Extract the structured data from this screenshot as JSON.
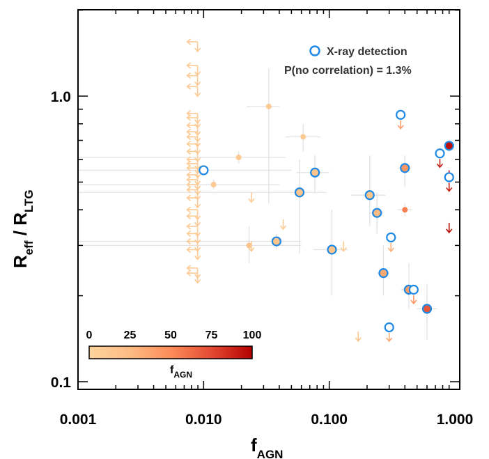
{
  "chart_data": {
    "type": "scatter",
    "x_scale": "log",
    "y_scale": "log",
    "xlim": [
      0.001,
      1.0
    ],
    "ylim": [
      0.1,
      2.0
    ],
    "x_ticks": [
      "0.001",
      "0.010",
      "0.100",
      "1.000"
    ],
    "y_ticks": [
      "0.1",
      "1.0"
    ],
    "xlabel": "f",
    "xlabel_sub": "AGN",
    "ylabel": [
      "R",
      "eff",
      " / R",
      "LTG"
    ],
    "legend": {
      "marker_label": "X-ray detection",
      "stat_label": "P(no correlation) = 1.3%",
      "placement": "top-right",
      "marker_color": "#1e88e5"
    },
    "colorbar": {
      "ticks": [
        "0",
        "25",
        "50",
        "75",
        "100"
      ],
      "label": "f",
      "label_sub": "AGN",
      "colors": [
        "#fdd49e",
        "#fdbb84",
        "#fc8d59",
        "#e34a33",
        "#b30000"
      ],
      "placement": "bottom-left"
    },
    "detections": [
      {
        "x": 0.033,
        "y": 0.92,
        "fagn": 10,
        "xerr": [
          0.022,
          0.04
        ],
        "yerr": [
          0.42,
          1.25
        ]
      },
      {
        "x": 0.062,
        "y": 0.72,
        "fagn": 10,
        "xerr": [
          0.045,
          0.085
        ],
        "yerr": [
          0.64,
          0.8
        ]
      },
      {
        "x": 0.019,
        "y": 0.61,
        "fagn": 12,
        "xerr": [
          0.001,
          0.045
        ],
        "yerr": [
          0.58,
          0.64
        ]
      },
      {
        "x": 0.012,
        "y": 0.49,
        "fagn": 12,
        "xerr": [
          0.001,
          0.04
        ],
        "yerr": [
          0.47,
          0.51
        ]
      },
      {
        "x": 0.023,
        "y": 0.3,
        "fagn": 15,
        "xerr": [
          0.001,
          0.06
        ],
        "yerr": [
          0.26,
          0.35
        ]
      },
      {
        "x": 0.4,
        "y": 0.4,
        "fagn": 55,
        "xerr": [
          0.35,
          0.46
        ],
        "yerr": [
          0.38,
          0.42
        ]
      },
      {
        "x": 0.6,
        "y": 0.18,
        "fagn": 65,
        "xerr": [
          0.5,
          0.72
        ],
        "yerr": [
          0.16,
          0.2
        ]
      },
      {
        "x": 0.9,
        "y": 0.67,
        "fagn": 95,
        "xerr": [
          0.86,
          0.95
        ],
        "yerr": [
          0.65,
          0.7
        ]
      }
    ],
    "xray_detections": [
      {
        "x": 0.01,
        "y": 0.55,
        "fagn": null,
        "xerr": [
          0.001,
          0.05
        ],
        "yerr": [
          0.53,
          0.57
        ]
      },
      {
        "x": 0.077,
        "y": 0.54,
        "fagn": 15,
        "xerr": [
          0.055,
          0.1
        ],
        "yerr": [
          0.46,
          0.62
        ]
      },
      {
        "x": 0.058,
        "y": 0.46,
        "fagn": 15,
        "xerr": [
          0.001,
          0.095
        ],
        "yerr": [
          0.28,
          0.6
        ]
      },
      {
        "x": 0.038,
        "y": 0.31,
        "fagn": 15,
        "xerr": [
          0.001,
          0.06
        ],
        "yerr": [
          0.29,
          0.33
        ]
      },
      {
        "x": 0.105,
        "y": 0.29,
        "fagn": 15,
        "xerr": [
          0.075,
          0.14
        ],
        "yerr": [
          0.2,
          0.4
        ]
      },
      {
        "x": 0.21,
        "y": 0.45,
        "fagn": 15,
        "xerr": [
          0.15,
          0.28
        ],
        "yerr": [
          0.35,
          0.62
        ]
      },
      {
        "x": 0.24,
        "y": 0.39,
        "fagn": 25,
        "xerr": [
          0.21,
          0.27
        ],
        "yerr": [
          0.33,
          0.46
        ]
      },
      {
        "x": 0.4,
        "y": 0.56,
        "fagn": 45,
        "xerr": [
          0.35,
          0.45
        ],
        "yerr": [
          0.48,
          0.62
        ]
      },
      {
        "x": 0.27,
        "y": 0.24,
        "fagn": 35,
        "xerr": [
          0.24,
          0.3
        ],
        "yerr": [
          0.2,
          0.3
        ]
      },
      {
        "x": 0.43,
        "y": 0.21,
        "fagn": 40,
        "xerr": [
          0.37,
          0.5
        ],
        "yerr": [
          0.18,
          0.26
        ]
      },
      {
        "x": 0.6,
        "y": 0.18,
        "fagn": 70,
        "xerr": [
          0.5,
          0.72
        ],
        "yerr": [
          0.14,
          0.22
        ]
      },
      {
        "x": 0.9,
        "y": 0.67,
        "fagn": 95,
        "xerr": [
          0.86,
          0.95
        ],
        "yerr": [
          0.64,
          0.7
        ]
      }
    ],
    "xray_upper_limits": [
      {
        "x": 0.37,
        "y": 0.86,
        "fagn": 40
      },
      {
        "x": 0.76,
        "y": 0.63,
        "fagn": 90
      },
      {
        "x": 0.9,
        "y": 0.52,
        "fagn": 90
      },
      {
        "x": 0.31,
        "y": 0.32,
        "fagn": 30
      },
      {
        "x": 0.47,
        "y": 0.21,
        "fagn": 45
      },
      {
        "x": 0.3,
        "y": 0.155,
        "fagn": 35
      }
    ],
    "upper_limits_y": [
      {
        "x": 0.024,
        "y": 0.46,
        "fagn": 10
      },
      {
        "x": 0.043,
        "y": 0.37,
        "fagn": 10
      },
      {
        "x": 0.024,
        "y": 0.31,
        "fagn": 10
      },
      {
        "x": 0.13,
        "y": 0.31,
        "fagn": 10
      },
      {
        "x": 0.17,
        "y": 0.15,
        "fagn": 10
      },
      {
        "x": 0.9,
        "y": 0.55,
        "fagn": 95
      },
      {
        "x": 0.9,
        "y": 0.36,
        "fagn": 95
      }
    ],
    "upper_limits_x": [
      {
        "x": 0.0085,
        "y": 1.55,
        "fagn": 10
      },
      {
        "x": 0.0085,
        "y": 1.28,
        "fagn": 10
      },
      {
        "x": 0.0085,
        "y": 1.18,
        "fagn": 10
      },
      {
        "x": 0.0085,
        "y": 1.08,
        "fagn": 10
      },
      {
        "x": 0.0085,
        "y": 0.87,
        "fagn": 10
      },
      {
        "x": 0.0085,
        "y": 0.84,
        "fagn": 10
      },
      {
        "x": 0.0085,
        "y": 0.79,
        "fagn": 10
      },
      {
        "x": 0.0085,
        "y": 0.75,
        "fagn": 10
      },
      {
        "x": 0.0085,
        "y": 0.72,
        "fagn": 10
      },
      {
        "x": 0.0085,
        "y": 0.68,
        "fagn": 10
      },
      {
        "x": 0.0085,
        "y": 0.64,
        "fagn": 10
      },
      {
        "x": 0.0085,
        "y": 0.6,
        "fagn": 10
      },
      {
        "x": 0.0085,
        "y": 0.58,
        "fagn": 10
      },
      {
        "x": 0.0085,
        "y": 0.56,
        "fagn": 10
      },
      {
        "x": 0.0085,
        "y": 0.53,
        "fagn": 10
      },
      {
        "x": 0.0085,
        "y": 0.51,
        "fagn": 10
      },
      {
        "x": 0.0085,
        "y": 0.49,
        "fagn": 10
      },
      {
        "x": 0.0085,
        "y": 0.47,
        "fagn": 10
      },
      {
        "x": 0.0085,
        "y": 0.44,
        "fagn": 10
      },
      {
        "x": 0.0085,
        "y": 0.4,
        "fagn": 10
      },
      {
        "x": 0.0085,
        "y": 0.38,
        "fagn": 10
      },
      {
        "x": 0.0085,
        "y": 0.35,
        "fagn": 10
      },
      {
        "x": 0.0085,
        "y": 0.33,
        "fagn": 10
      },
      {
        "x": 0.0085,
        "y": 0.31,
        "fagn": 10
      },
      {
        "x": 0.0085,
        "y": 0.29,
        "fagn": 10
      },
      {
        "x": 0.0085,
        "y": 0.25,
        "fagn": 10
      },
      {
        "x": 0.0085,
        "y": 0.24,
        "fagn": 10
      }
    ]
  }
}
